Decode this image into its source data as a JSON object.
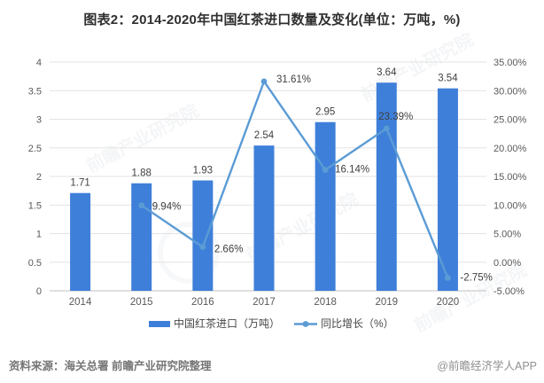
{
  "title": "图表2：2014-2020年中国红茶进口数量及变化(单位：万吨，%)",
  "footer": {
    "source": "资料来源：海关总署 前瞻产业研究院整理",
    "brand": "@前瞻经济学人APP"
  },
  "watermark": {
    "text": "前瞻产业研究院"
  },
  "colors": {
    "bar": "#3e7fd9",
    "line": "#5b9bd5",
    "marker": "#5b9bd5",
    "grid": "#e3e3e3",
    "baseline": "#c0c0c0",
    "axis_text": "#595959",
    "data_label": "#3f3f3f",
    "legend_text": "#474747"
  },
  "chart_data": {
    "type": "bar+line combo",
    "title": "图表2：2014-2020年中国红茶进口数量及变化(单位：万吨，%)",
    "categories": [
      "2014",
      "2015",
      "2016",
      "2017",
      "2018",
      "2019",
      "2020"
    ],
    "series": [
      {
        "name": "中国红茶进口（万吨）",
        "type": "bar",
        "axis": "left",
        "values": [
          1.71,
          1.88,
          1.93,
          2.54,
          2.95,
          3.64,
          3.54
        ],
        "labels": [
          "1.71",
          "1.88",
          "1.93",
          "2.54",
          "2.95",
          "3.64",
          "3.54"
        ]
      },
      {
        "name": "同比增长（%）",
        "type": "line",
        "axis": "right",
        "values": [
          null,
          9.94,
          2.66,
          31.61,
          16.14,
          23.39,
          -2.75
        ],
        "labels": [
          null,
          "9.94%",
          "2.66%",
          "31.61%",
          "16.14%",
          "23.39%",
          "-2.75%"
        ],
        "label_dx": [
          0,
          12,
          13,
          14,
          11,
          -9,
          14
        ],
        "label_dy": [
          0,
          5,
          6,
          1,
          3,
          -10,
          3
        ]
      }
    ],
    "left_axis": {
      "min": 0,
      "max": 4,
      "step": 0.5,
      "ticks": [
        "0",
        "0.5",
        "1",
        "1.5",
        "2",
        "2.5",
        "3",
        "3.5",
        "4"
      ]
    },
    "right_axis": {
      "min": -5,
      "max": 35,
      "step": 5,
      "ticks": [
        "-5.00%",
        "0.00%",
        "5.00%",
        "10.00%",
        "15.00%",
        "20.00%",
        "25.00%",
        "30.00%",
        "35.00%"
      ]
    },
    "grid": true,
    "legend_position": "bottom"
  }
}
